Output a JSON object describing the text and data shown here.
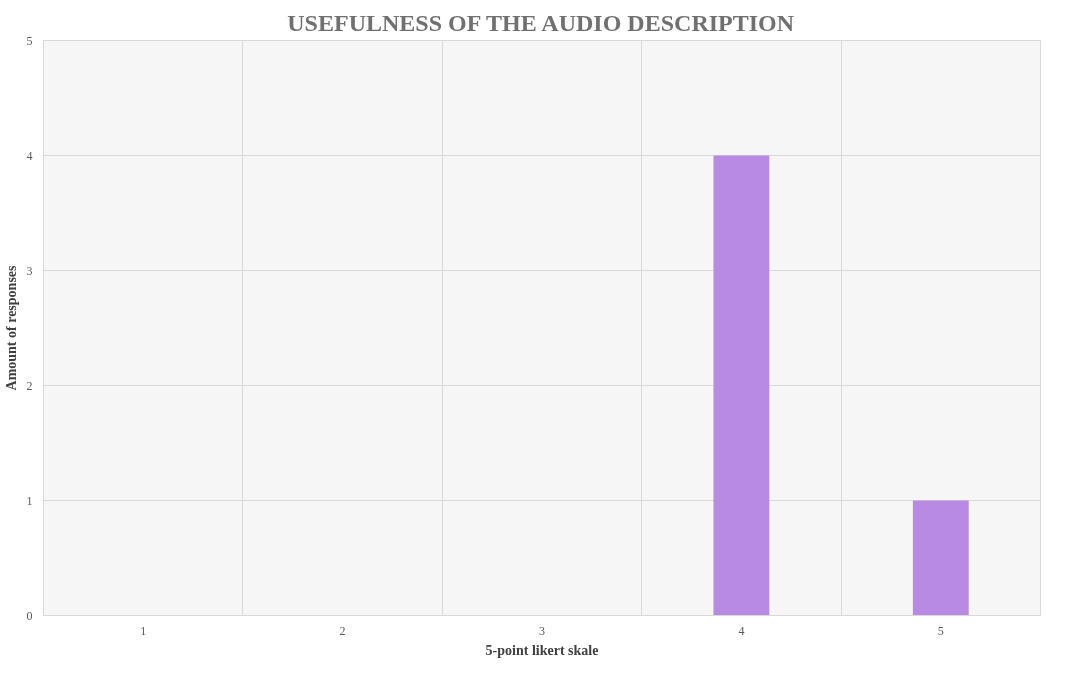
{
  "chart_data": {
    "type": "bar",
    "title": "USEFULNESS OF THE AUDIO DESCRIPTION",
    "xlabel": "5-point likert skale",
    "ylabel": "Amount of responses",
    "categories": [
      "1",
      "2",
      "3",
      "4",
      "5"
    ],
    "values": [
      0,
      0,
      0,
      4,
      1
    ],
    "color": "#b88ae3",
    "ylim": [
      0,
      5
    ],
    "yticks": [
      0,
      1,
      2,
      3,
      4,
      5
    ],
    "grid": true
  }
}
